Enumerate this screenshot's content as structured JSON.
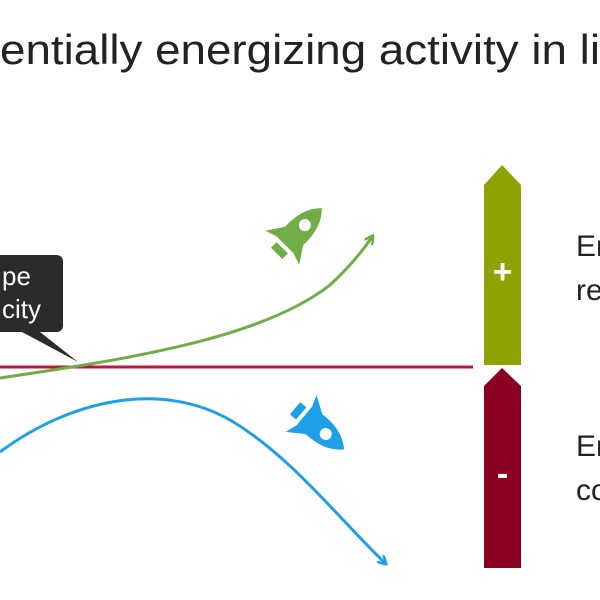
{
  "title": "entially energizing activity in li",
  "callout": {
    "lines": [
      "pe",
      "city"
    ]
  },
  "bars": {
    "plus": "+",
    "minus": "-"
  },
  "side_labels": [
    {
      "lines": [
        "Er",
        "re"
      ]
    },
    {
      "lines": [
        "Er",
        "co"
      ]
    }
  ]
}
